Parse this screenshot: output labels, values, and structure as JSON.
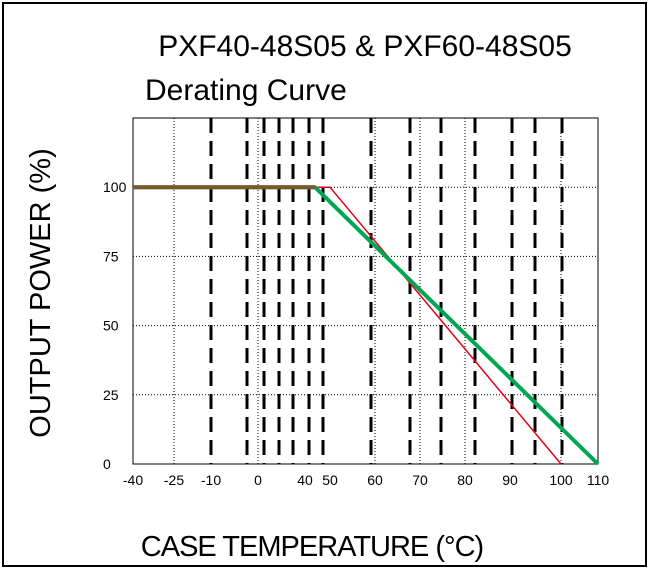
{
  "chart_data": {
    "type": "line",
    "title_line1": "PXF40-48S05 & PXF60-48S05",
    "title_line2": "Derating Curve",
    "xlabel": "CASE TEMPERATURE (°C)",
    "ylabel": "OUTPUT POWER (%)",
    "x_tick_labels": [
      "-40",
      "-25",
      "-10",
      "0",
      "40",
      "50",
      "60",
      "70",
      "80",
      "90",
      "100",
      "110"
    ],
    "y_tick_labels": [
      "0",
      "25",
      "50",
      "75",
      "100"
    ],
    "ylim": [
      0,
      125
    ],
    "grid": true,
    "series": [
      {
        "color": "#e0001b",
        "points": [
          [
            -40,
            100
          ],
          [
            50,
            100
          ],
          [
            100,
            0
          ]
        ]
      },
      {
        "color": "#00a651",
        "points": [
          [
            -40,
            100
          ],
          [
            44,
            100
          ],
          [
            110,
            0
          ]
        ]
      }
    ],
    "overlap_color": "#7a5a2a"
  }
}
